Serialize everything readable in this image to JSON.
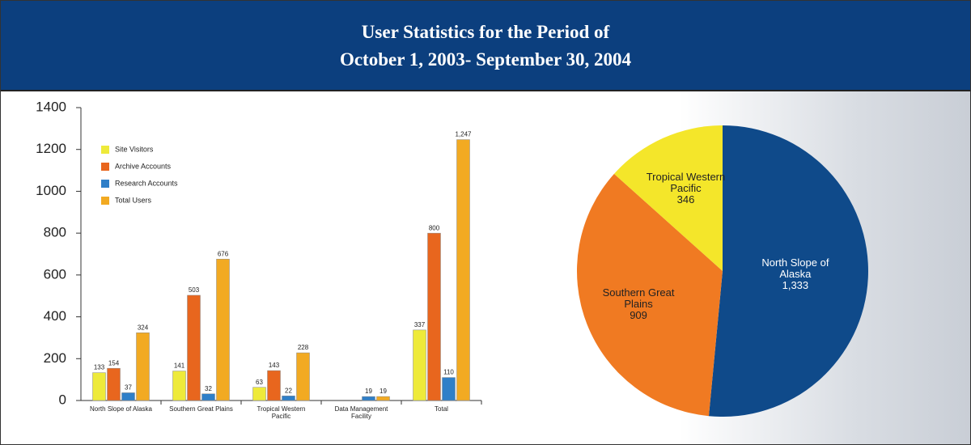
{
  "header": {
    "lines": [
      "User Statistics for the Period of",
      "October 1, 2003- September 30, 2004"
    ]
  },
  "chart_data": [
    {
      "type": "bar",
      "categories": [
        "North Slope of Alaska",
        "Southern Great Plains",
        "Tropical Western Pacific",
        "Data Management Facility",
        "Total"
      ],
      "series": [
        {
          "name": "Site Visitors",
          "color": "#eeea3a",
          "values": [
            133,
            141,
            63,
            null,
            337
          ]
        },
        {
          "name": "Archive Accounts",
          "color": "#e8661e",
          "values": [
            154,
            503,
            143,
            null,
            800
          ]
        },
        {
          "name": "Research Accounts",
          "color": "#2f7fc8",
          "values": [
            37,
            32,
            22,
            19,
            110
          ]
        },
        {
          "name": "Total Users",
          "color": "#f2aa22",
          "values": [
            324,
            676,
            228,
            19,
            1247
          ],
          "value_labels": [
            "324",
            "676",
            "228",
            "19",
            "1,247"
          ]
        }
      ],
      "ylim": [
        0,
        1400
      ],
      "yticks": [
        0,
        200,
        400,
        600,
        800,
        1000,
        1200,
        1400
      ],
      "legend": "upper left"
    },
    {
      "type": "pie",
      "categories": [
        "North Slope of Alaska",
        "Southern Great Plains",
        "Tropical Western Pacific"
      ],
      "values": [
        1333,
        909,
        346
      ],
      "value_labels": [
        "1,333",
        "909",
        "346"
      ],
      "colors": [
        "#0f4a8a",
        "#f07a22",
        "#f4e62a"
      ]
    }
  ]
}
